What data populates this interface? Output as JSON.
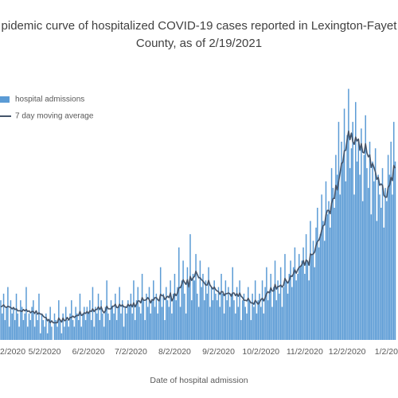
{
  "chart_data": {
    "type": "bar",
    "title_lines": [
      "pidemic curve of hospitalized COVID-19 cases reported in Lexington-Fayet",
      "County, as of 2/19/2021"
    ],
    "x_label": "Date of hospital admission",
    "ylim": [
      0,
      40
    ],
    "categories": [
      null,
      "2/2020",
      null,
      null,
      null,
      null,
      null,
      null,
      null,
      null,
      null,
      null,
      null,
      null,
      null,
      null,
      null,
      null,
      null,
      null,
      null,
      null,
      null,
      null,
      null,
      null,
      null,
      null,
      null,
      null,
      null,
      "5/2/2020",
      null,
      null,
      null,
      null,
      null,
      null,
      null,
      null,
      null,
      null,
      null,
      null,
      null,
      null,
      null,
      null,
      null,
      null,
      null,
      null,
      null,
      null,
      null,
      null,
      null,
      null,
      null,
      null,
      null,
      null,
      "6/2/2020",
      null,
      null,
      null,
      null,
      null,
      null,
      null,
      null,
      null,
      null,
      null,
      null,
      null,
      null,
      null,
      null,
      null,
      null,
      null,
      null,
      null,
      null,
      null,
      null,
      null,
      null,
      null,
      null,
      null,
      "7/2/2020",
      null,
      null,
      null,
      null,
      null,
      null,
      null,
      null,
      null,
      null,
      null,
      null,
      null,
      null,
      null,
      null,
      null,
      null,
      null,
      null,
      null,
      null,
      null,
      null,
      null,
      null,
      null,
      null,
      null,
      null,
      "8/2/2020",
      null,
      null,
      null,
      null,
      null,
      null,
      null,
      null,
      null,
      null,
      null,
      null,
      null,
      null,
      null,
      null,
      null,
      null,
      null,
      null,
      null,
      null,
      null,
      null,
      null,
      null,
      null,
      null,
      null,
      null,
      "9/2/2020",
      null,
      null,
      null,
      null,
      null,
      null,
      null,
      null,
      null,
      null,
      null,
      null,
      null,
      null,
      null,
      null,
      null,
      null,
      null,
      null,
      null,
      null,
      null,
      null,
      null,
      null,
      null,
      null,
      null,
      "10/2/2020",
      null,
      null,
      null,
      null,
      null,
      null,
      null,
      null,
      null,
      null,
      null,
      null,
      null,
      null,
      null,
      null,
      null,
      null,
      null,
      null,
      null,
      null,
      null,
      null,
      null,
      null,
      null,
      null,
      null,
      null,
      "11/2/2020",
      null,
      null,
      null,
      null,
      null,
      null,
      null,
      null,
      null,
      null,
      null,
      null,
      null,
      null,
      null,
      null,
      null,
      null,
      null,
      null,
      null,
      null,
      null,
      null,
      null,
      null,
      null,
      null,
      null,
      "12/2/2020",
      null,
      null,
      null,
      null,
      null,
      null,
      null,
      null,
      null,
      null,
      null,
      null,
      null,
      null,
      null,
      null,
      null,
      null,
      null,
      null,
      null,
      null,
      null,
      null,
      null,
      null,
      null,
      null,
      null,
      null,
      "1/2/20",
      null,
      null,
      null
    ],
    "series": [
      {
        "name": "hospital admissions",
        "type": "bar",
        "color": "#5b9bd5",
        "values": [
          6,
          4,
          7,
          3,
          5,
          8,
          2,
          6,
          4,
          5,
          3,
          7,
          4,
          2,
          6,
          5,
          3,
          4,
          8,
          2,
          4,
          3,
          5,
          6,
          2,
          4,
          3,
          7,
          1,
          4,
          3,
          2,
          4,
          1,
          3,
          5,
          2,
          0,
          4,
          3,
          2,
          6,
          3,
          1,
          4,
          2,
          5,
          3,
          2,
          4,
          6,
          3,
          2,
          5,
          4,
          3,
          7,
          2,
          4,
          5,
          3,
          5,
          4,
          6,
          3,
          8,
          2,
          5,
          4,
          7,
          3,
          6,
          4,
          2,
          5,
          9,
          4,
          3,
          6,
          5,
          4,
          7,
          3,
          5,
          8,
          4,
          6,
          2,
          5,
          4,
          6,
          5,
          7,
          4,
          9,
          3,
          6,
          8,
          5,
          4,
          10,
          6,
          3,
          7,
          5,
          8,
          4,
          6,
          9,
          5,
          7,
          4,
          6,
          11,
          5,
          7,
          3,
          8,
          6,
          5,
          9,
          4,
          7,
          10,
          6,
          8,
          14,
          5,
          9,
          12,
          7,
          4,
          11,
          8,
          16,
          6,
          10,
          9,
          13,
          7,
          5,
          12,
          8,
          10,
          6,
          9,
          7,
          11,
          5,
          8,
          6,
          9,
          7,
          6,
          8,
          5,
          10,
          7,
          4,
          9,
          6,
          8,
          5,
          7,
          11,
          6,
          4,
          8,
          5,
          9,
          3,
          6,
          7,
          5,
          4,
          8,
          6,
          3,
          7,
          5,
          9,
          4,
          6,
          7,
          5,
          9,
          4,
          8,
          11,
          6,
          7,
          10,
          5,
          8,
          12,
          6,
          9,
          7,
          11,
          5,
          8,
          13,
          9,
          7,
          10,
          12,
          8,
          11,
          14,
          9,
          10,
          13,
          11,
          12,
          14,
          10,
          16,
          12,
          9,
          18,
          13,
          15,
          11,
          17,
          20,
          14,
          16,
          22,
          18,
          15,
          24,
          19,
          21,
          17,
          26,
          23,
          20,
          28,
          25,
          33,
          22,
          30,
          27,
          35,
          24,
          31,
          38,
          26,
          29,
          33,
          22,
          36,
          27,
          30,
          25,
          32,
          21,
          28,
          34,
          26,
          23,
          30,
          19,
          27,
          24,
          29,
          18,
          25,
          22,
          20,
          26,
          17,
          23,
          21,
          28,
          25,
          30,
          22,
          33,
          27
        ]
      },
      {
        "name": "7 day moving average",
        "type": "line",
        "color": "#44546a",
        "values": [
          5.0,
          5.1,
          5.3,
          5.0,
          4.9,
          5.1,
          5.0,
          4.9,
          4.7,
          4.9,
          4.6,
          4.7,
          4.4,
          4.4,
          4.4,
          4.3,
          4.6,
          4.4,
          4.6,
          4.3,
          4.4,
          4.1,
          4.3,
          4.3,
          4.0,
          4.4,
          3.9,
          4.1,
          3.9,
          3.9,
          3.6,
          3.4,
          3.4,
          2.9,
          3.1,
          2.6,
          2.9,
          2.6,
          2.6,
          2.6,
          2.6,
          3.3,
          3.0,
          2.7,
          3.3,
          2.9,
          3.0,
          3.4,
          3.0,
          3.4,
          3.4,
          3.6,
          3.4,
          3.6,
          3.7,
          3.7,
          4.3,
          3.7,
          3.8,
          4.1,
          4.0,
          4.3,
          4.0,
          4.4,
          4.3,
          4.7,
          4.3,
          4.6,
          4.6,
          5.0,
          4.6,
          5.0,
          4.4,
          4.1,
          4.4,
          5.1,
          4.7,
          4.7,
          4.7,
          5.1,
          5.1,
          5.4,
          4.9,
          4.9,
          5.4,
          5.1,
          5.3,
          5.0,
          5.0,
          4.9,
          5.4,
          5.1,
          5.4,
          5.0,
          5.6,
          5.0,
          5.4,
          5.9,
          5.9,
          5.6,
          6.4,
          6.0,
          6.0,
          6.1,
          6.4,
          6.1,
          5.6,
          6.1,
          6.0,
          6.4,
          6.4,
          6.1,
          5.9,
          6.9,
          6.7,
          6.7,
          6.1,
          6.4,
          6.6,
          6.4,
          7.1,
          5.9,
          6.3,
          7.0,
          6.7,
          7.1,
          7.9,
          7.9,
          8.4,
          9.1,
          8.7,
          8.4,
          9.1,
          8.0,
          9.6,
          9.0,
          9.4,
          9.6,
          10.4,
          9.9,
          9.4,
          9.4,
          9.1,
          8.9,
          8.6,
          8.3,
          8.3,
          9.0,
          8.3,
          8.0,
          7.7,
          8.0,
          7.6,
          7.4,
          7.3,
          6.9,
          7.3,
          7.3,
          6.7,
          7.0,
          7.0,
          7.1,
          7.0,
          6.6,
          7.1,
          7.1,
          6.7,
          7.0,
          6.6,
          7.1,
          6.6,
          6.4,
          6.0,
          6.0,
          5.9,
          6.3,
          5.9,
          5.6,
          5.6,
          5.4,
          6.0,
          5.7,
          5.4,
          5.7,
          6.1,
          6.3,
          5.9,
          6.4,
          7.0,
          7.3,
          7.1,
          7.9,
          7.4,
          7.4,
          8.4,
          7.7,
          8.1,
          8.1,
          8.3,
          8.0,
          8.3,
          9.3,
          8.9,
          8.6,
          9.0,
          9.7,
          9.6,
          10.0,
          10.6,
          10.1,
          10.6,
          11.0,
          11.1,
          11.4,
          12.0,
          11.3,
          12.1,
          11.9,
          11.3,
          13.0,
          12.9,
          13.0,
          13.3,
          14.3,
          14.9,
          15.1,
          15.7,
          16.6,
          17.3,
          17.4,
          18.9,
          19.6,
          19.6,
          19.1,
          20.7,
          21.4,
          21.4,
          23.4,
          22.7,
          24.0,
          25.3,
          26.7,
          26.9,
          28.6,
          28.7,
          30.3,
          31.6,
          30.3,
          31.3,
          30.0,
          29.6,
          30.7,
          30.1,
          30.4,
          28.7,
          29.7,
          28.4,
          28.3,
          29.7,
          28.3,
          27.7,
          28.0,
          26.1,
          26.7,
          26.1,
          25.4,
          24.3,
          24.6,
          23.4,
          23.6,
          23.4,
          21.9,
          21.6,
          21.6,
          23.1,
          23.4,
          24.6,
          24.1,
          26.4,
          26.0
        ]
      }
    ]
  }
}
